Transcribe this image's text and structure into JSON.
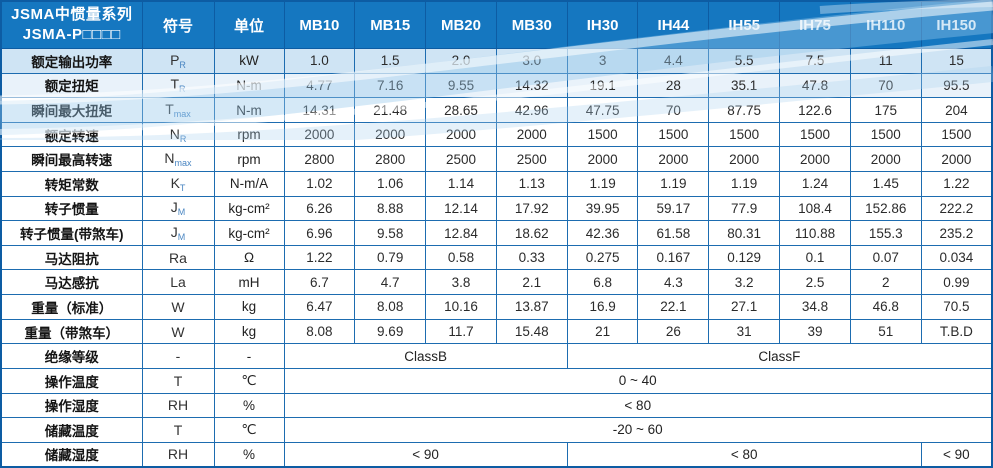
{
  "header": {
    "title_line1": "JSMA中惯量系列",
    "title_line2": "JSMA-P□□□□",
    "col_symbol": "符号",
    "col_unit": "单位",
    "models": [
      "MB10",
      "MB15",
      "MB20",
      "MB30",
      "IH30",
      "IH44",
      "IH55",
      "IH75",
      "IH110",
      "IH150"
    ]
  },
  "rows": [
    {
      "label": "额定输出功率",
      "symbol": "P",
      "sub": "R",
      "unit": "kW",
      "values": [
        "1.0",
        "1.5",
        "2.0",
        "3.0",
        "3",
        "4.4",
        "5.5",
        "7.5",
        "11",
        "15"
      ]
    },
    {
      "label": "额定扭矩",
      "symbol": "T",
      "sub": "R",
      "unit": "N-m",
      "values": [
        "4.77",
        "7.16",
        "9.55",
        "14.32",
        "19.1",
        "28",
        "35.1",
        "47.8",
        "70",
        "95.5"
      ]
    },
    {
      "label": "瞬间最大扭矩",
      "symbol": "T",
      "sub": "max",
      "unit": "N-m",
      "values": [
        "14.31",
        "21.48",
        "28.65",
        "42.96",
        "47.75",
        "70",
        "87.75",
        "122.6",
        "175",
        "204"
      ]
    },
    {
      "label": "额定转速",
      "symbol": "N",
      "sub": "R",
      "unit": "rpm",
      "values": [
        "2000",
        "2000",
        "2000",
        "2000",
        "1500",
        "1500",
        "1500",
        "1500",
        "1500",
        "1500"
      ]
    },
    {
      "label": "瞬间最高转速",
      "symbol": "N",
      "sub": "max",
      "unit": "rpm",
      "values": [
        "2800",
        "2800",
        "2500",
        "2500",
        "2000",
        "2000",
        "2000",
        "2000",
        "2000",
        "2000"
      ]
    },
    {
      "label": "转矩常数",
      "symbol": "K",
      "sub": "T",
      "unit": "N-m/A",
      "values": [
        "1.02",
        "1.06",
        "1.14",
        "1.13",
        "1.19",
        "1.19",
        "1.19",
        "1.24",
        "1.45",
        "1.22"
      ]
    },
    {
      "label": "转子惯量",
      "symbol": "J",
      "sub": "M",
      "unit": "kg-cm²",
      "values": [
        "6.26",
        "8.88",
        "12.14",
        "17.92",
        "39.95",
        "59.17",
        "77.9",
        "108.4",
        "152.86",
        "222.2"
      ]
    },
    {
      "label": "转子惯量(带煞车)",
      "symbol": "J",
      "sub": "M",
      "unit": "kg-cm²",
      "values": [
        "6.96",
        "9.58",
        "12.84",
        "18.62",
        "42.36",
        "61.58",
        "80.31",
        "110.88",
        "155.3",
        "235.2"
      ]
    },
    {
      "label": "马达阻抗",
      "symbol": "Ra",
      "sub": "",
      "unit": "Ω",
      "values": [
        "1.22",
        "0.79",
        "0.58",
        "0.33",
        "0.275",
        "0.167",
        "0.129",
        "0.1",
        "0.07",
        "0.034"
      ]
    },
    {
      "label": "马达感抗",
      "symbol": "La",
      "sub": "",
      "unit": "mH",
      "values": [
        "6.7",
        "4.7",
        "3.8",
        "2.1",
        "6.8",
        "4.3",
        "3.2",
        "2.5",
        "2",
        "0.99"
      ]
    },
    {
      "label": "重量（标准）",
      "symbol": "W",
      "sub": "",
      "unit": "kg",
      "values": [
        "6.47",
        "8.08",
        "10.16",
        "13.87",
        "16.9",
        "22.1",
        "27.1",
        "34.8",
        "46.8",
        "70.5"
      ]
    },
    {
      "label": "重量（带煞车）",
      "symbol": "W",
      "sub": "",
      "unit": "kg",
      "values": [
        "8.08",
        "9.69",
        "11.7",
        "15.48",
        "21",
        "26",
        "31",
        "39",
        "51",
        "T.B.D"
      ]
    }
  ],
  "merged_rows": [
    {
      "label": "绝缘等级",
      "symbol": "-",
      "sub": "",
      "unit": "-",
      "cells": [
        {
          "text": "ClassB",
          "span": 4
        },
        {
          "text": "ClassF",
          "span": 6
        }
      ]
    },
    {
      "label": "操作温度",
      "symbol": "T",
      "sub": "",
      "unit": "℃",
      "cells": [
        {
          "text": "0 ~ 40",
          "span": 10
        }
      ]
    },
    {
      "label": "操作湿度",
      "symbol": "RH",
      "sub": "",
      "unit": "%",
      "cells": [
        {
          "text": "< 80",
          "span": 10
        }
      ]
    },
    {
      "label": "储藏温度",
      "symbol": "T",
      "sub": "",
      "unit": "℃",
      "cells": [
        {
          "text": "-20 ~ 60",
          "span": 10
        }
      ]
    },
    {
      "label": "储藏湿度",
      "symbol": "RH",
      "sub": "",
      "unit": "%",
      "cells": [
        {
          "text": "< 90",
          "span": 4
        },
        {
          "text": "< 80",
          "span": 5
        },
        {
          "text": "< 90",
          "span": 1
        }
      ]
    }
  ],
  "colors": {
    "header_blue": "#1577c0",
    "grid_blue": "#1d6cb0",
    "outer_border_blue": "#0d5ca3",
    "row_tint_blue": "#cfe4f4",
    "subscript_blue": "#4a86c2"
  }
}
